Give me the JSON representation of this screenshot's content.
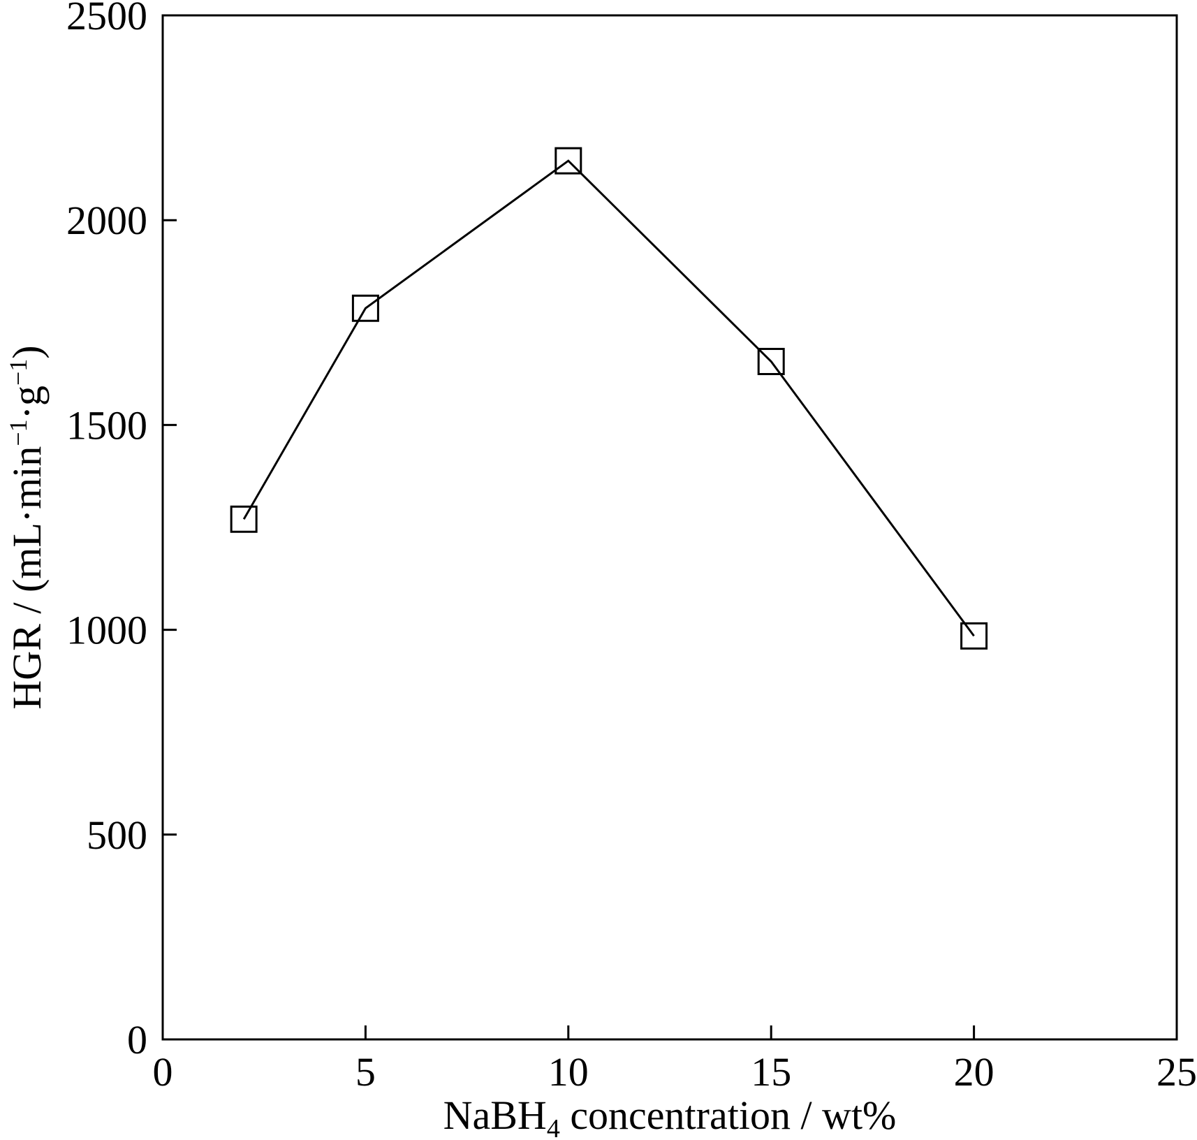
{
  "chart_data": {
    "type": "line",
    "title": "",
    "xlabel_parts": {
      "pre": "NaBH",
      "sub": "4",
      "post": " concentration / wt%"
    },
    "ylabel_parts": {
      "pre": "HGR / (mL·min",
      "sup1": "−1",
      "mid": "·g",
      "sup2": "−1",
      "post": ")"
    },
    "xlim": [
      0,
      25
    ],
    "ylim": [
      0,
      2500
    ],
    "x_ticks": [
      0,
      5,
      10,
      15,
      20,
      25
    ],
    "x_tick_labels": [
      "0",
      "5",
      "10",
      "15",
      "20",
      "25"
    ],
    "y_ticks": [
      0,
      500,
      1000,
      1500,
      2000,
      2500
    ],
    "y_tick_labels": [
      "0",
      "500",
      "1000",
      "1500",
      "2000",
      "2500"
    ],
    "grid": false,
    "series": [
      {
        "marker": "open-square",
        "color": "#000000",
        "x": [
          2,
          5,
          10,
          15,
          20
        ],
        "y": [
          1270,
          1785,
          2145,
          1655,
          985
        ]
      }
    ]
  }
}
